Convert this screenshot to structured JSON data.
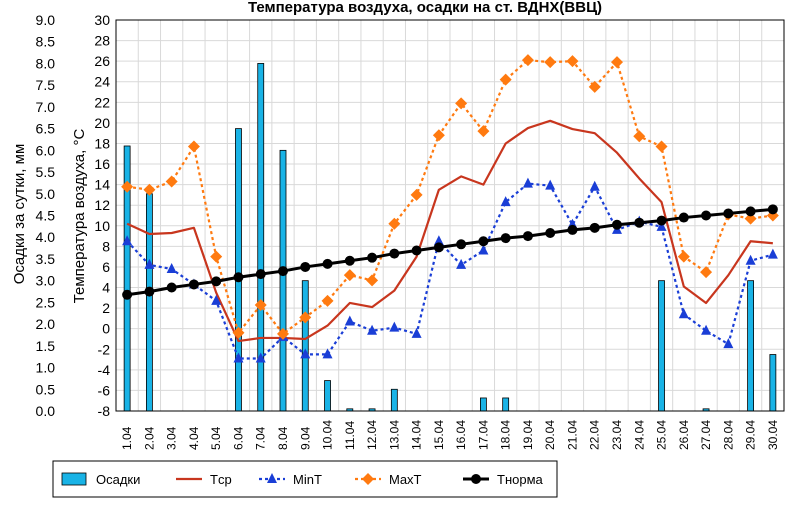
{
  "chart_data": {
    "type": "bar",
    "title": "Температура воздуха, осадки на ст. ВДНХ(ВВЦ)",
    "y_left_label": "Осадки за сутки, мм",
    "y_right_label": "Температура воздуха, °C",
    "y_left_range": [
      0,
      9
    ],
    "y_right_range": [
      -8,
      30
    ],
    "y_left_ticks": [
      "0.0",
      "0.5",
      "1.0",
      "1.5",
      "2.0",
      "2.5",
      "3.0",
      "3.5",
      "4.0",
      "4.5",
      "5.0",
      "5.5",
      "6.0",
      "6.5",
      "7.0",
      "7.5",
      "8.0",
      "8.5",
      "9.0"
    ],
    "y_right_ticks": [
      "-8",
      "-6",
      "-4",
      "-2",
      "0",
      "2",
      "4",
      "6",
      "8",
      "10",
      "12",
      "14",
      "16",
      "18",
      "20",
      "22",
      "24",
      "26",
      "28",
      "30"
    ],
    "categories": [
      "1.04",
      "2.04",
      "3.04",
      "4.04",
      "5.04",
      "6.04",
      "7.04",
      "8.04",
      "9.04",
      "10.04",
      "11.04",
      "12.04",
      "13.04",
      "14.04",
      "15.04",
      "16.04",
      "17.04",
      "18.04",
      "19.04",
      "20.04",
      "21.04",
      "22.04",
      "23.04",
      "24.04",
      "25.04",
      "26.04",
      "27.04",
      "28.04",
      "29.04",
      "30.04"
    ],
    "grid": true,
    "legend_position": "bottom",
    "series": [
      {
        "name": "Осадки",
        "kind": "bar",
        "axis": "left",
        "color": "#19b3e6",
        "values": [
          6.1,
          5.0,
          0,
          0,
          0,
          6.5,
          8.0,
          6.0,
          3.0,
          0.7,
          0.05,
          0.05,
          0.5,
          0,
          0,
          0,
          0.3,
          0.3,
          0,
          0,
          0,
          0,
          0,
          0,
          3.0,
          0,
          0.05,
          0,
          3.0,
          1.3
        ]
      },
      {
        "name": "Tср",
        "kind": "line",
        "axis": "right",
        "color": "#c8361e",
        "values": [
          10.2,
          9.2,
          9.3,
          9.8,
          3.5,
          -1.2,
          -0.9,
          -0.9,
          -1.0,
          0.3,
          2.5,
          2.1,
          3.7,
          7.0,
          13.5,
          14.8,
          14.0,
          18.0,
          19.5,
          20.2,
          19.4,
          19.0,
          17.1,
          14.6,
          12.3,
          4.1,
          2.5,
          5.2,
          8.5,
          8.3
        ]
      },
      {
        "name": "MinT",
        "kind": "line",
        "axis": "right",
        "color": "#1a3ed6",
        "values": [
          8.5,
          6.2,
          5.8,
          4.3,
          2.7,
          -2.9,
          -2.9,
          -0.8,
          -2.5,
          -2.5,
          0.7,
          -0.2,
          0.1,
          -0.5,
          8.5,
          6.2,
          7.6,
          12.3,
          14.1,
          13.9,
          10.1,
          13.8,
          9.6,
          10.4,
          9.9,
          1.4,
          -0.2,
          -1.5,
          6.6,
          7.2
        ]
      },
      {
        "name": "MaxT",
        "kind": "line",
        "axis": "right",
        "color": "#ff7a10",
        "values": [
          13.8,
          13.5,
          14.3,
          17.7,
          7.0,
          -0.4,
          2.3,
          -0.5,
          1.1,
          2.7,
          5.2,
          4.7,
          10.2,
          13.0,
          18.8,
          21.9,
          19.2,
          24.2,
          26.1,
          25.9,
          26.0,
          23.5,
          25.9,
          18.7,
          17.7,
          7.0,
          5.5,
          11.1,
          10.7,
          11.0
        ]
      },
      {
        "name": "Тнорма",
        "kind": "line",
        "axis": "right",
        "color": "#000000",
        "values": [
          3.3,
          3.6,
          4.0,
          4.3,
          4.6,
          5.0,
          5.3,
          5.6,
          6.0,
          6.3,
          6.6,
          6.9,
          7.3,
          7.6,
          7.9,
          8.2,
          8.5,
          8.8,
          9.0,
          9.3,
          9.6,
          9.8,
          10.1,
          10.3,
          10.5,
          10.8,
          11.0,
          11.2,
          11.4,
          11.6
        ]
      }
    ]
  },
  "colors": {
    "grid": "#d9d9d9",
    "frame": "#000000",
    "background": "#ffffff"
  },
  "legend": {
    "items": [
      {
        "label": "Осадки",
        "icon": "bar"
      },
      {
        "label": "Tср",
        "icon": "line"
      },
      {
        "label": "MinT",
        "icon": "triangle"
      },
      {
        "label": "MaxT",
        "icon": "diamond"
      },
      {
        "label": "Тнорма",
        "icon": "circle"
      }
    ]
  }
}
